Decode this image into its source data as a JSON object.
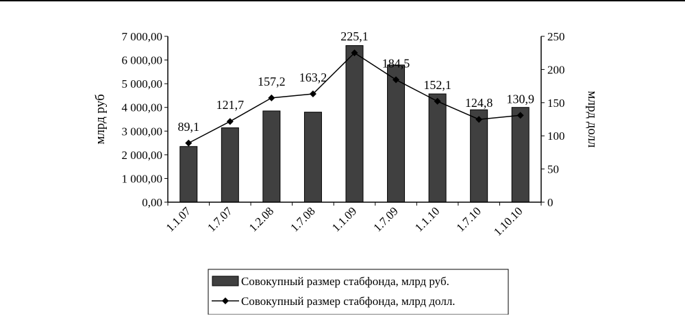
{
  "chart_data": {
    "type": "bar",
    "categories": [
      "1.1.07",
      "1.7.07",
      "1.2.08",
      "1.7.08",
      "1.1.09",
      "1.7.09",
      "1.1.10",
      "1.7.10",
      "1.10.10"
    ],
    "series": [
      {
        "name": "Совокупный размер стабфонда, млрд  руб.",
        "type": "bar",
        "axis": "left",
        "color": "#404040",
        "values": [
          2350,
          3140,
          3850,
          3800,
          6610,
          5790,
          4570,
          3900,
          4000
        ]
      },
      {
        "name": "Совокупный размер стабфонда, млрд  долл.",
        "type": "line",
        "axis": "right",
        "color": "#000000",
        "marker": "diamond",
        "values": [
          89.1,
          121.7,
          157.2,
          163.2,
          225.1,
          184.5,
          152.1,
          124.8,
          130.9
        ],
        "labels": [
          "89,1",
          "121,7",
          "157,2",
          "163,2",
          "225,1",
          "184,5",
          "152,1",
          "124,8",
          "130,9"
        ]
      }
    ],
    "ylabel": "млрд  руб",
    "ylabel_right": "млрд  долл",
    "ylim": [
      0,
      7000
    ],
    "ylim_right": [
      0,
      250
    ],
    "yticks": [
      "0,00",
      "1 000,00",
      "2 000,00",
      "3 000,00",
      "4 000,00",
      "5 000,00",
      "6 000,00",
      "7 000,00"
    ],
    "yticks_right": [
      "0",
      "50",
      "100",
      "150",
      "200",
      "250"
    ],
    "grid": false,
    "legend_position": "bottom"
  }
}
